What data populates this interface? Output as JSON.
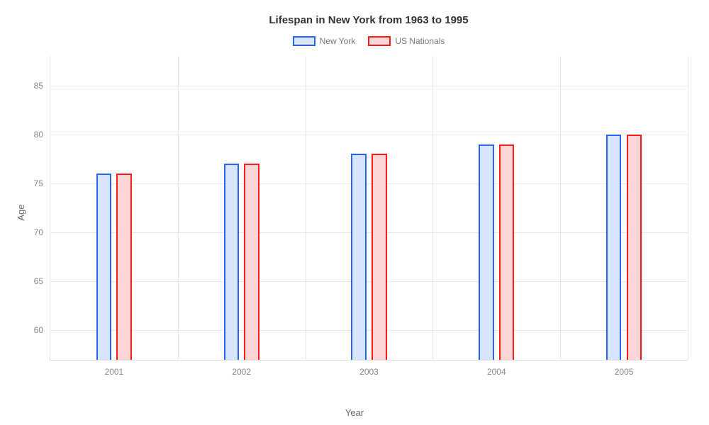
{
  "chart": {
    "type": "bar",
    "title": "Lifespan in New York from 1963 to 1995",
    "title_fontsize": 15,
    "xlabel": "Year",
    "ylabel": "Age",
    "label_fontsize": 13,
    "tick_fontsize": 12,
    "background_color": "#ffffff",
    "grid_color": "#e8e8e8",
    "axis_color": "#e0e0e0",
    "tick_label_color": "#888888",
    "axis_label_color": "#666666",
    "categories": [
      "2001",
      "2002",
      "2003",
      "2004",
      "2005"
    ],
    "ylim": [
      57,
      88
    ],
    "yticks": [
      60,
      65,
      70,
      75,
      80,
      85
    ],
    "bar_width_ratio": 0.12,
    "bar_gap_ratio": 0.04,
    "series": [
      {
        "name": "New York",
        "border_color": "#2962ff",
        "fill_color": "#d6e4ff",
        "values": [
          76,
          77,
          78,
          79,
          80
        ]
      },
      {
        "name": "US Nationals",
        "border_color": "#ff1a1a",
        "fill_color": "#ffd6d6",
        "values": [
          76,
          77,
          78,
          79,
          80
        ]
      }
    ],
    "legend": {
      "position": "top-center",
      "swatch_width": 32,
      "swatch_height": 14
    }
  }
}
